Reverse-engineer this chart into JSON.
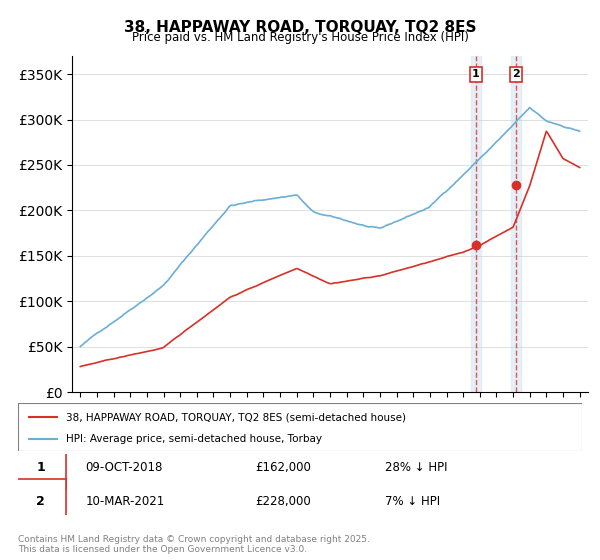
{
  "title": "38, HAPPAWAY ROAD, TORQUAY, TQ2 8ES",
  "subtitle": "Price paid vs. HM Land Registry's House Price Index (HPI)",
  "ylabel_ticks": [
    "£0",
    "£50K",
    "£100K",
    "£150K",
    "£200K",
    "£250K",
    "£300K",
    "£350K"
  ],
  "y_values": [
    0,
    50000,
    100000,
    150000,
    200000,
    250000,
    300000,
    350000
  ],
  "ylim": [
    0,
    370000
  ],
  "hpi_color": "#6baed6",
  "price_color": "#d73027",
  "vline_color": "#d73027",
  "vline_alpha": 0.5,
  "marker1_date": 2018.77,
  "marker1_price": 162000,
  "marker2_date": 2021.19,
  "marker2_price": 228000,
  "legend_line1": "38, HAPPAWAY ROAD, TORQUAY, TQ2 8ES (semi-detached house)",
  "legend_line2": "HPI: Average price, semi-detached house, Torbay",
  "table_row1": [
    "1",
    "09-OCT-2018",
    "£162,000",
    "28% ↓ HPI"
  ],
  "table_row2": [
    "2",
    "10-MAR-2021",
    "£228,000",
    "7% ↓ HPI"
  ],
  "footnote": "Contains HM Land Registry data © Crown copyright and database right 2025.\nThis data is licensed under the Open Government Licence v3.0.",
  "bg_highlight1": "#dce9f5",
  "bg_highlight2": "#dce9f5"
}
